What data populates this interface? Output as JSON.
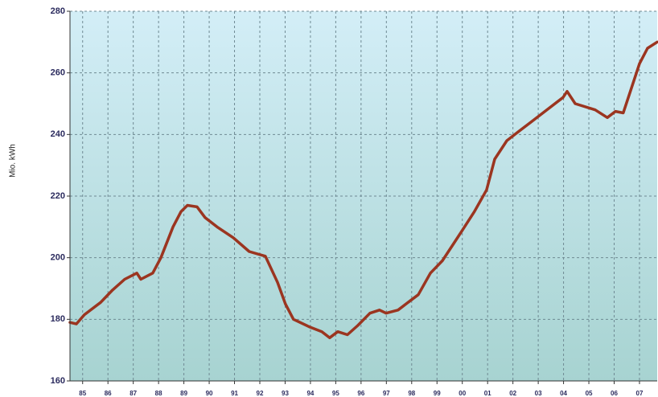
{
  "chart_data": {
    "type": "line",
    "y_label": "Mio. kWh",
    "x": [
      1985.0,
      1985.25,
      1985.57,
      1986.21,
      1986.68,
      1987.16,
      1987.64,
      1987.8,
      1988.27,
      1988.59,
      1989.07,
      1989.39,
      1989.64,
      1990.02,
      1990.34,
      1990.81,
      1991.45,
      1992.08,
      1992.72,
      1993.2,
      1993.51,
      1993.83,
      1994.47,
      1994.95,
      1995.26,
      1995.58,
      1995.96,
      1996.37,
      1996.85,
      1997.23,
      1997.49,
      1997.96,
      1998.44,
      1998.76,
      1999.24,
      1999.71,
      2000.19,
      2000.51,
      2000.98,
      2001.46,
      2001.78,
      2002.26,
      2002.73,
      2003.21,
      2003.84,
      2004.48,
      2004.64,
      2004.96,
      2005.75,
      2006.23,
      2006.55,
      2006.86,
      2007.18,
      2007.5,
      2007.82,
      2008.2
    ],
    "series": [
      {
        "color": "#9b3520",
        "values": [
          179,
          178.5,
          181.5,
          185.5,
          189.5,
          193,
          195,
          193,
          195,
          200,
          210,
          215,
          217,
          216.5,
          213,
          210,
          206.5,
          202,
          200.5,
          192,
          185,
          180,
          177.5,
          176,
          174,
          176,
          175,
          178,
          182,
          183,
          182,
          183,
          186,
          188,
          195,
          199,
          205,
          209,
          215,
          222,
          232,
          238,
          241,
          244,
          248,
          252,
          254,
          250,
          248,
          245.5,
          247.5,
          247,
          255,
          263,
          268,
          270
        ]
      }
    ],
    "xlim": [
      1985,
      2008.2
    ],
    "xticks": [
      {
        "value": 1985.5,
        "label": "85"
      },
      {
        "value": 1986.5,
        "label": "86"
      },
      {
        "value": 1987.5,
        "label": "87"
      },
      {
        "value": 1988.5,
        "label": "88"
      },
      {
        "value": 1989.5,
        "label": "89"
      },
      {
        "value": 1990.5,
        "label": "90"
      },
      {
        "value": 1991.5,
        "label": "91"
      },
      {
        "value": 1992.5,
        "label": "92"
      },
      {
        "value": 1993.5,
        "label": "93"
      },
      {
        "value": 1994.5,
        "label": "94"
      },
      {
        "value": 1995.5,
        "label": "95"
      },
      {
        "value": 1996.5,
        "label": "96"
      },
      {
        "value": 1997.5,
        "label": "97"
      },
      {
        "value": 1998.5,
        "label": "98"
      },
      {
        "value": 1999.5,
        "label": "99"
      },
      {
        "value": 2000.5,
        "label": "00"
      },
      {
        "value": 2001.5,
        "label": "01"
      },
      {
        "value": 2002.5,
        "label": "02"
      },
      {
        "value": 2003.5,
        "label": "03"
      },
      {
        "value": 2004.5,
        "label": "04"
      },
      {
        "value": 2005.5,
        "label": "05"
      },
      {
        "value": 2006.5,
        "label": "06"
      },
      {
        "value": 2007.5,
        "label": "07"
      }
    ],
    "ylim": [
      160,
      280
    ],
    "yticks": [
      160,
      180,
      200,
      220,
      240,
      260,
      280
    ],
    "grid": true
  }
}
